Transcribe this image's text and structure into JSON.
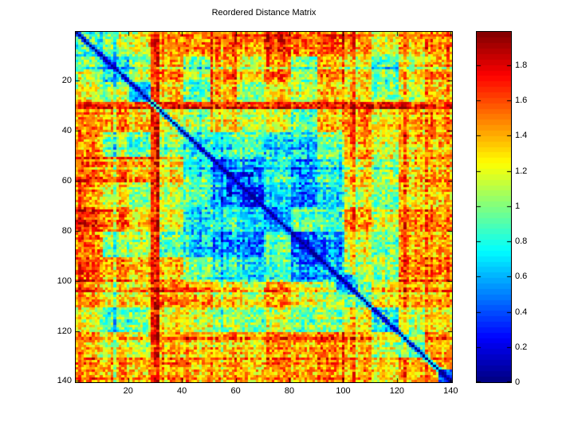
{
  "figure": {
    "background_color": "#ffffff",
    "axis_color": "#000000"
  },
  "chart_data": {
    "type": "heatmap",
    "title": "Reordered Distance Matrix",
    "n": 140,
    "colormap": "jet",
    "colormap_levels": 64,
    "value_range": [
      0,
      1.99
    ],
    "diagonal_value": 0,
    "grid": false,
    "x_ticks": [
      20,
      40,
      60,
      80,
      100,
      120,
      140
    ],
    "x_tick_labels": [
      "20",
      "40",
      "60",
      "80",
      "100",
      "120",
      "140"
    ],
    "y_ticks": [
      20,
      40,
      60,
      80,
      100,
      120,
      140
    ],
    "y_tick_labels": [
      "20",
      "40",
      "60",
      "80",
      "100",
      "120",
      "140"
    ],
    "colorbar": {
      "position": "right",
      "ticks": [
        0,
        0.2,
        0.4,
        0.6,
        0.8,
        1,
        1.2,
        1.4,
        1.6,
        1.8
      ],
      "tick_labels": [
        "0",
        "0.2",
        "0.4",
        "0.6",
        "0.8",
        "1",
        "1.2",
        "1.4",
        "1.6",
        "1.8"
      ]
    },
    "block_size": 10,
    "values_note": "symmetric distance matrix downsampled to 14x14 block means, block_size cells per block, values in data units of the colorbar",
    "values": [
      [
        0.9,
        1.05,
        1.25,
        1.45,
        1.45,
        1.6,
        1.5,
        1.7,
        1.55,
        1.6,
        1.5,
        1.2,
        1.35,
        1.55
      ],
      [
        1.05,
        0.75,
        1.1,
        1.4,
        1.0,
        1.5,
        1.25,
        1.5,
        1.05,
        1.45,
        1.3,
        0.9,
        1.2,
        1.45
      ],
      [
        1.25,
        1.1,
        0.65,
        1.3,
        0.9,
        1.45,
        1.05,
        1.3,
        1.15,
        1.35,
        1.35,
        1.0,
        1.15,
        1.4
      ],
      [
        1.45,
        1.4,
        1.3,
        1.15,
        1.0,
        1.25,
        1.1,
        1.15,
        0.9,
        1.3,
        1.45,
        1.2,
        1.35,
        1.45
      ],
      [
        1.45,
        1.0,
        0.9,
        1.0,
        0.7,
        0.8,
        0.9,
        0.65,
        0.7,
        0.95,
        1.4,
        1.15,
        1.3,
        1.4
      ],
      [
        1.6,
        1.5,
        1.45,
        1.25,
        0.8,
        0.55,
        0.6,
        0.8,
        0.6,
        0.8,
        1.3,
        1.05,
        1.35,
        1.45
      ],
      [
        1.5,
        1.25,
        1.05,
        1.1,
        0.9,
        0.6,
        0.4,
        0.7,
        0.5,
        0.7,
        1.2,
        1.0,
        1.3,
        1.4
      ],
      [
        1.7,
        1.5,
        1.3,
        1.15,
        0.65,
        0.8,
        0.7,
        0.55,
        0.95,
        0.85,
        1.45,
        1.1,
        1.45,
        1.5
      ],
      [
        1.55,
        1.05,
        1.15,
        0.9,
        0.7,
        0.6,
        0.5,
        0.95,
        0.45,
        0.55,
        1.25,
        0.95,
        1.4,
        1.45
      ],
      [
        1.6,
        1.45,
        1.35,
        1.3,
        0.95,
        0.8,
        0.7,
        0.85,
        0.55,
        0.6,
        1.05,
        1.0,
        1.45,
        1.5
      ],
      [
        1.5,
        1.3,
        1.35,
        1.45,
        1.4,
        1.3,
        1.2,
        1.45,
        1.25,
        1.05,
        0.95,
        1.25,
        1.4,
        1.45
      ],
      [
        1.2,
        0.9,
        1.0,
        1.2,
        1.15,
        1.05,
        1.0,
        1.1,
        0.95,
        1.0,
        1.25,
        0.75,
        1.1,
        1.3
      ],
      [
        1.35,
        1.2,
        1.15,
        1.35,
        1.3,
        1.35,
        1.3,
        1.45,
        1.4,
        1.45,
        1.4,
        1.1,
        0.9,
        1.4
      ],
      [
        1.55,
        1.45,
        1.4,
        1.45,
        1.4,
        1.45,
        1.4,
        1.5,
        1.45,
        1.5,
        1.45,
        1.3,
        1.4,
        1.0
      ]
    ],
    "overrides": [
      {
        "rows": [
          29,
          31
        ],
        "cols": [
          1,
          140
        ],
        "value": 1.72,
        "symmetric": true
      },
      {
        "rows": [
          57,
          66
        ],
        "cols": [
          57,
          66
        ],
        "value": 0.35,
        "symmetric": false
      },
      {
        "rows": [
          84,
          93
        ],
        "cols": [
          84,
          93
        ],
        "value": 0.4,
        "symmetric": false
      },
      {
        "rows": [
          98,
          104
        ],
        "cols": [
          98,
          104
        ],
        "value": 0.45,
        "symmetric": false
      },
      {
        "rows": [
          131,
          135
        ],
        "cols": [
          131,
          140
        ],
        "value": 1.5,
        "symmetric": true
      },
      {
        "rows": [
          136,
          140
        ],
        "cols": [
          136,
          140
        ],
        "value": 0.4,
        "symmetric": false
      }
    ],
    "render_hints": {
      "seed": 7,
      "stripe_amp": 0.36,
      "strong_stripe_amp": 1.3,
      "strong_stripe_prob": 0.1,
      "cell_amp": 0.25,
      "diag_neighbor_factor": 0.5,
      "tick_len": 5
    }
  }
}
